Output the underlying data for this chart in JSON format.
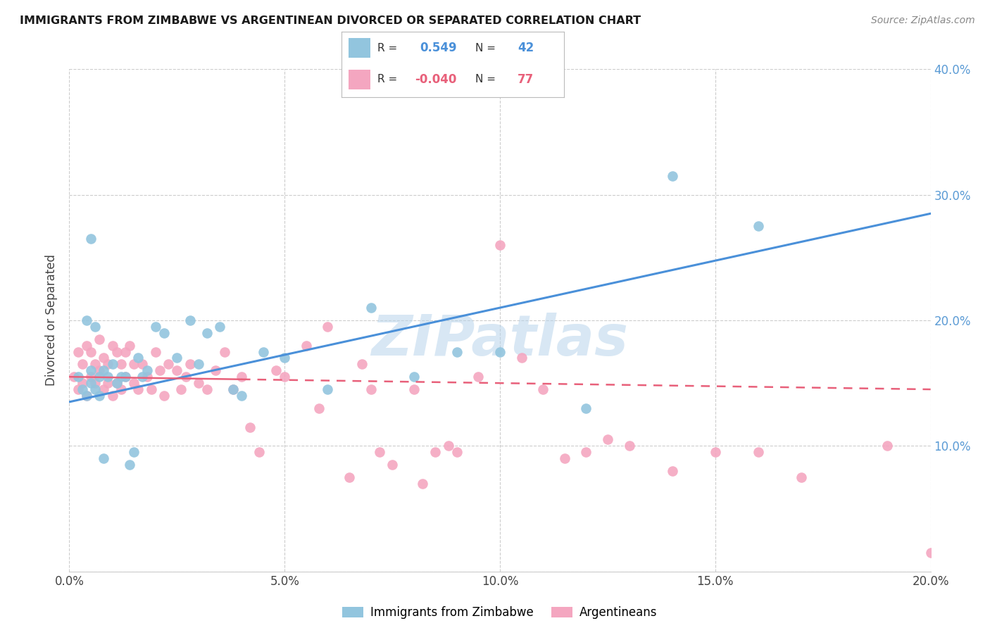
{
  "title": "IMMIGRANTS FROM ZIMBABWE VS ARGENTINEAN DIVORCED OR SEPARATED CORRELATION CHART",
  "source": "Source: ZipAtlas.com",
  "ylabel": "Divorced or Separated",
  "legend_label_1": "Immigrants from Zimbabwe",
  "legend_label_2": "Argentineans",
  "r1": 0.549,
  "n1": 42,
  "r2": -0.04,
  "n2": 77,
  "color_blue": "#92c5de",
  "color_pink": "#f4a6c0",
  "color_line_blue": "#4a90d9",
  "color_line_pink": "#e8607a",
  "color_grid": "#cccccc",
  "color_right_axis": "#5b9bd5",
  "watermark": "ZIPatlas",
  "xlim": [
    0.0,
    0.2
  ],
  "ylim": [
    0.0,
    0.4
  ],
  "blue_points_x": [
    0.002,
    0.003,
    0.004,
    0.004,
    0.005,
    0.005,
    0.005,
    0.006,
    0.006,
    0.007,
    0.007,
    0.008,
    0.008,
    0.009,
    0.01,
    0.011,
    0.012,
    0.013,
    0.014,
    0.015,
    0.016,
    0.017,
    0.018,
    0.02,
    0.022,
    0.025,
    0.028,
    0.03,
    0.032,
    0.035,
    0.038,
    0.04,
    0.045,
    0.05,
    0.06,
    0.07,
    0.08,
    0.09,
    0.1,
    0.12,
    0.14,
    0.16
  ],
  "blue_points_y": [
    0.155,
    0.145,
    0.14,
    0.2,
    0.15,
    0.16,
    0.265,
    0.145,
    0.195,
    0.14,
    0.155,
    0.16,
    0.09,
    0.155,
    0.165,
    0.15,
    0.155,
    0.155,
    0.085,
    0.095,
    0.17,
    0.155,
    0.16,
    0.195,
    0.19,
    0.17,
    0.2,
    0.165,
    0.19,
    0.195,
    0.145,
    0.14,
    0.175,
    0.17,
    0.145,
    0.21,
    0.155,
    0.175,
    0.175,
    0.13,
    0.315,
    0.275
  ],
  "pink_points_x": [
    0.001,
    0.002,
    0.002,
    0.003,
    0.003,
    0.004,
    0.004,
    0.005,
    0.005,
    0.006,
    0.006,
    0.007,
    0.007,
    0.008,
    0.008,
    0.009,
    0.009,
    0.01,
    0.01,
    0.011,
    0.011,
    0.012,
    0.012,
    0.013,
    0.013,
    0.014,
    0.015,
    0.015,
    0.016,
    0.017,
    0.018,
    0.019,
    0.02,
    0.021,
    0.022,
    0.023,
    0.025,
    0.026,
    0.027,
    0.028,
    0.03,
    0.032,
    0.034,
    0.036,
    0.038,
    0.04,
    0.042,
    0.044,
    0.048,
    0.05,
    0.055,
    0.058,
    0.06,
    0.065,
    0.068,
    0.07,
    0.072,
    0.075,
    0.08,
    0.082,
    0.085,
    0.088,
    0.09,
    0.095,
    0.1,
    0.105,
    0.11,
    0.115,
    0.12,
    0.125,
    0.13,
    0.14,
    0.15,
    0.16,
    0.17,
    0.19,
    0.2
  ],
  "pink_points_y": [
    0.155,
    0.145,
    0.175,
    0.15,
    0.165,
    0.14,
    0.18,
    0.155,
    0.175,
    0.15,
    0.165,
    0.16,
    0.185,
    0.145,
    0.17,
    0.15,
    0.165,
    0.14,
    0.18,
    0.15,
    0.175,
    0.145,
    0.165,
    0.175,
    0.155,
    0.18,
    0.15,
    0.165,
    0.145,
    0.165,
    0.155,
    0.145,
    0.175,
    0.16,
    0.14,
    0.165,
    0.16,
    0.145,
    0.155,
    0.165,
    0.15,
    0.145,
    0.16,
    0.175,
    0.145,
    0.155,
    0.115,
    0.095,
    0.16,
    0.155,
    0.18,
    0.13,
    0.195,
    0.075,
    0.165,
    0.145,
    0.095,
    0.085,
    0.145,
    0.07,
    0.095,
    0.1,
    0.095,
    0.155,
    0.26,
    0.17,
    0.145,
    0.09,
    0.095,
    0.105,
    0.1,
    0.08,
    0.095,
    0.095,
    0.075,
    0.1,
    0.015
  ],
  "blue_line_x0": 0.0,
  "blue_line_x1": 0.2,
  "blue_line_y0": 0.135,
  "blue_line_y1": 0.285,
  "pink_line_x0": 0.0,
  "pink_line_x1": 0.2,
  "pink_line_y0": 0.155,
  "pink_line_y1": 0.145
}
